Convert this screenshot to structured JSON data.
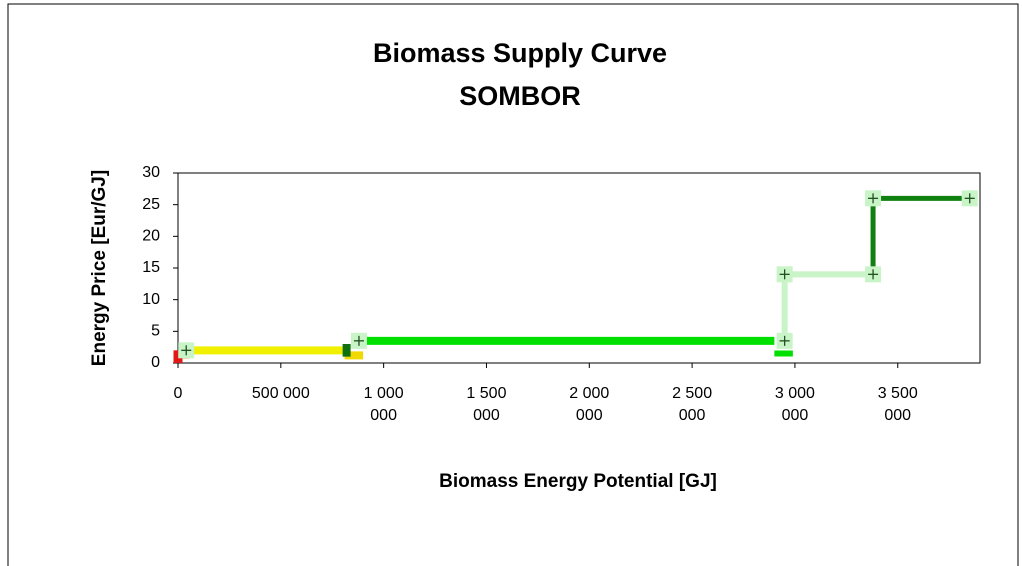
{
  "chart_data": {
    "type": "line",
    "title": "Biomass Supply Curve",
    "subtitle": "SOMBOR",
    "x_label": "Biomass Energy Potential [GJ]",
    "y_label": "Energy Price [Eur/GJ]",
    "xlim": [
      0,
      3900000
    ],
    "ylim": [
      0,
      30
    ],
    "yticks": [
      0,
      5,
      10,
      15,
      20,
      25,
      30
    ],
    "xticks": [
      0,
      {
        "value": 500000,
        "label": "500 000"
      },
      {
        "value": 1000000,
        "label": "1 000 000"
      },
      {
        "value": 1500000,
        "label": "1 500 000"
      },
      {
        "value": 2000000,
        "label": "2 000 000"
      },
      {
        "value": 2500000,
        "label": "2 500 000"
      },
      {
        "value": 3000000,
        "label": "3 000 000"
      },
      {
        "value": 3500000,
        "label": "3 500 000"
      }
    ],
    "series": [
      {
        "color": "#e01818",
        "width": 9,
        "x": [
          0,
          0
        ],
        "values": [
          0,
          2
        ]
      },
      {
        "color": "#f08010",
        "width": 14,
        "x": [
          20000,
          55000
        ],
        "values": [
          1.8,
          1.8
        ]
      },
      {
        "color": "#f0f000",
        "width": 8,
        "x": [
          55000,
          830000
        ],
        "values": [
          2,
          2
        ]
      },
      {
        "color": "#f0d800",
        "width": 8,
        "x": [
          810000,
          900000
        ],
        "values": [
          1.2,
          1.2
        ]
      },
      {
        "color": "#107010",
        "width": 8,
        "x": [
          820000,
          820000
        ],
        "values": [
          1,
          3
        ]
      },
      {
        "color": "#00e000",
        "width": 8,
        "x": [
          880000,
          2900000
        ],
        "values": [
          3.5,
          3.5
        ]
      },
      {
        "color": "#00e000",
        "width": 6,
        "x": [
          2900000,
          2990000
        ],
        "values": [
          1.5,
          1.5
        ]
      },
      {
        "color": "#c8f4c8",
        "width": 6,
        "x": [
          2950000,
          2950000,
          3380000
        ],
        "values": [
          3.5,
          14,
          14
        ]
      },
      {
        "color": "#108010",
        "width": 5,
        "x": [
          3380000,
          3380000,
          3850000
        ],
        "values": [
          14,
          26,
          26
        ]
      }
    ],
    "markers": {
      "color": "#c8f4c8",
      "x": [
        40000,
        880000,
        2950000,
        2950000,
        3380000,
        3380000,
        3850000
      ],
      "values": [
        2,
        3.5,
        3.5,
        14,
        14,
        26,
        26
      ]
    }
  }
}
